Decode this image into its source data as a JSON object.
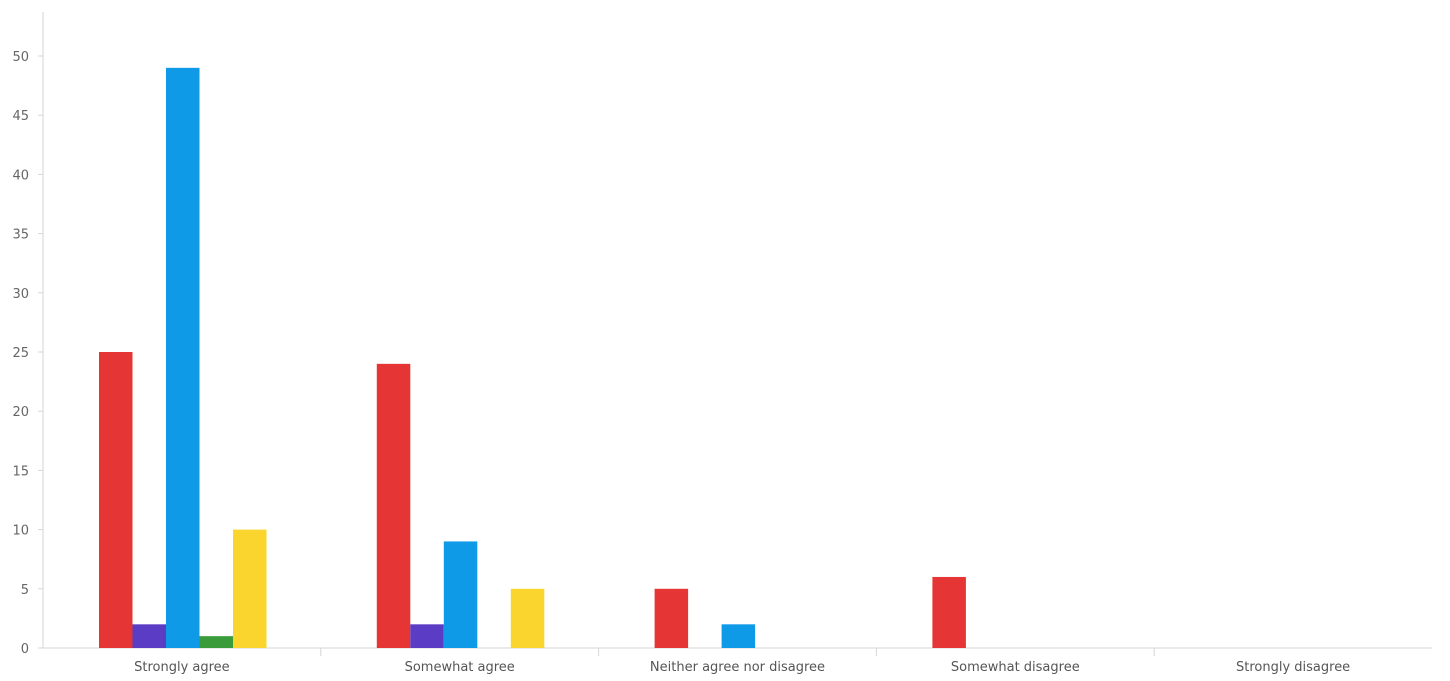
{
  "chart_data": {
    "type": "bar",
    "title": "",
    "xlabel": "",
    "ylabel": "",
    "ylim": [
      0,
      53
    ],
    "yticks": [
      0,
      5,
      10,
      15,
      20,
      25,
      30,
      35,
      40,
      45,
      50
    ],
    "grid": false,
    "legend": "none",
    "categories": [
      "Strongly agree",
      "Somewhat agree",
      "Neither agree nor disagree",
      "Somewhat disagree",
      "Strongly disagree"
    ],
    "series": [
      {
        "color": "#e63535",
        "values": [
          25,
          24,
          5,
          6,
          0
        ]
      },
      {
        "color": "#5b3cc4",
        "values": [
          2,
          2,
          0,
          0,
          0
        ]
      },
      {
        "color": "#0f9ae8",
        "values": [
          49,
          9,
          2,
          0,
          0
        ]
      },
      {
        "color": "#3a9b3a",
        "values": [
          1,
          0,
          0,
          0,
          0
        ]
      },
      {
        "color": "#fad52d",
        "values": [
          10,
          5,
          0,
          0,
          0
        ]
      }
    ]
  }
}
